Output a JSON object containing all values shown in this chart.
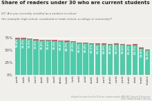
{
  "title": "Share of readers under 30 who are current students",
  "subtitle1": "Q7: Are you currently enrolled as a student in school",
  "subtitle2": "(for example, high school, vocational or trade school, a college or university)?",
  "bar_color": "#4ecba8",
  "highlight_color": "#e05555",
  "background_color": "#f0efeb",
  "text_color": "#222222",
  "subtitle_color": "#666666",
  "labels": [
    "cswiki",
    "nlwiki",
    "itwiki",
    "rowiki",
    "plwiki",
    "viwiki",
    "eswiki",
    "dewiki",
    "kowiki",
    "frwiki",
    "trwiki",
    "jawiki",
    "zhwiki",
    "fawiki",
    "arwiki",
    "phwiki",
    "ruwiki",
    "ptwiki",
    "ukwiki",
    "idwiki",
    "hewiki",
    "hewiki2"
  ],
  "values": [
    74.4,
    74.1,
    73.5,
    71.5,
    70.8,
    70.6,
    70.3,
    69.8,
    68.7,
    67.9,
    65.5,
    65.4,
    63.7,
    63.3,
    62.9,
    62.8,
    63.2,
    62.6,
    61.2,
    61.7,
    54.8,
    51.5
  ],
  "ylim": [
    0,
    100
  ],
  "yticks": [
    0,
    25,
    50,
    75
  ],
  "ytick_labels": [
    "0%",
    "25%",
    "50%",
    "75%"
  ],
  "footnote": "2021 Global Readers Survey",
  "footnote2": "Weighted at project level by 10 factors, between weights, WMF/UBC Data and IS Geography"
}
